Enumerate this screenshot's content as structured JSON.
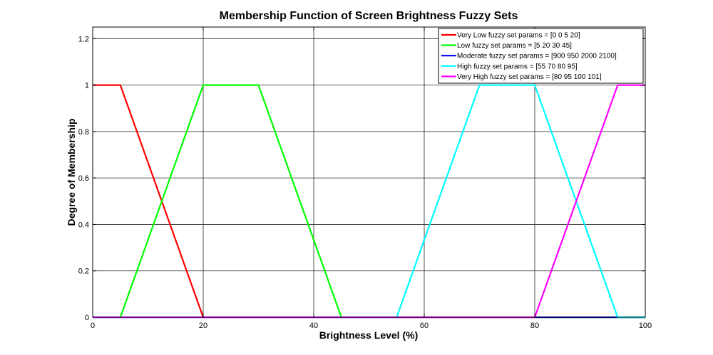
{
  "chart_data": {
    "type": "line",
    "title": "Membership Function of Screen Brightness Fuzzy Sets",
    "xlabel": "Brightness Level (%)",
    "ylabel": "Degree of Membership",
    "xlim": [
      0,
      100
    ],
    "ylim": [
      0,
      1.25
    ],
    "xticks": [
      0,
      20,
      40,
      60,
      80,
      100
    ],
    "xtick_labels": [
      "0",
      "20",
      "40",
      "60",
      "80",
      "100"
    ],
    "yticks": [
      0,
      0.2,
      0.4,
      0.6,
      0.8,
      1,
      1.2
    ],
    "ytick_labels": [
      "0",
      "0.2",
      "0.4",
      "0.6",
      "0.8",
      "1",
      "1.2"
    ],
    "grid": true,
    "legend_position": "top-right",
    "series": [
      {
        "name": "Very Low fuzzy set params = [0 0 5 20]",
        "color": "#ff0000",
        "x": [
          0,
          0,
          5,
          20,
          100
        ],
        "y": [
          1,
          1,
          1,
          0,
          0
        ]
      },
      {
        "name": "Low fuzzy set params = [5 20 30 45]",
        "color": "#00ff00",
        "x": [
          0,
          5,
          20,
          30,
          45,
          100
        ],
        "y": [
          0,
          0,
          1,
          1,
          0,
          0
        ]
      },
      {
        "name": "Moderate fuzzy set params = [900 950 2000 2100]",
        "color": "#0000ff",
        "x": [
          0,
          100
        ],
        "y": [
          0,
          0
        ]
      },
      {
        "name": "High fuzzy set params = [55 70 80 95]",
        "color": "#00ffff",
        "x": [
          0,
          55,
          70,
          80,
          95,
          100
        ],
        "y": [
          0,
          0,
          1,
          1,
          0,
          0
        ]
      },
      {
        "name": "Very High fuzzy set params = [80 95 100 101]",
        "color": "#ff00ff",
        "x": [
          0,
          80,
          95,
          100
        ],
        "y": [
          0,
          0,
          1,
          1
        ]
      }
    ]
  }
}
